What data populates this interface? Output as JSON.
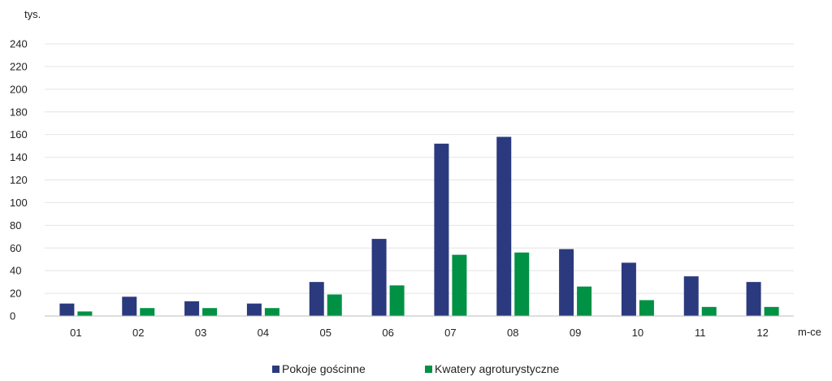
{
  "chart_data": {
    "type": "bar",
    "y_unit": "tys.",
    "x_unit": "m-ce",
    "categories": [
      "01",
      "02",
      "03",
      "04",
      "05",
      "06",
      "07",
      "08",
      "09",
      "10",
      "11",
      "12"
    ],
    "series": [
      {
        "name": "Pokoje gościnne",
        "color": "#2B3A7E",
        "values": [
          11,
          17,
          13,
          11,
          30,
          68,
          152,
          158,
          59,
          47,
          35,
          30
        ]
      },
      {
        "name": "Kwatery agroturystyczne",
        "color": "#009145",
        "values": [
          4,
          7,
          7,
          7,
          19,
          27,
          54,
          56,
          26,
          14,
          8,
          8
        ]
      }
    ],
    "ylim": [
      0,
      240
    ],
    "y_ticks": [
      0,
      20,
      40,
      60,
      80,
      100,
      120,
      140,
      160,
      180,
      200,
      220,
      240
    ],
    "grid": true,
    "legend_position": "bottom"
  }
}
